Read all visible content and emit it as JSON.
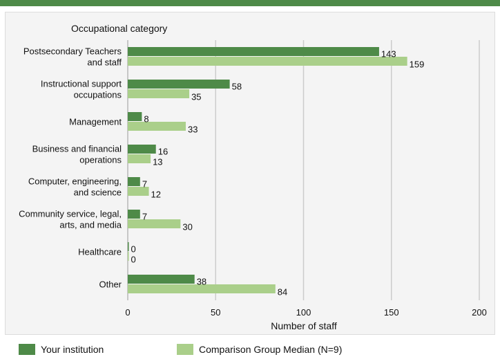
{
  "colors": {
    "accent": "#4e8a48",
    "series_1": "#4e8a48",
    "series_2": "#aacf8a",
    "gridline": "#cccccc"
  },
  "chart_data": {
    "type": "bar",
    "orientation": "horizontal",
    "title": "",
    "ylabel": "Occupational category",
    "xlabel": "Number of staff",
    "categories": [
      [
        "Postsecondary Teachers",
        "and staff"
      ],
      [
        "Instructional support",
        "occupations"
      ],
      [
        "Management"
      ],
      [
        "Business and financial",
        "operations"
      ],
      [
        "Computer, engineering,",
        "and science"
      ],
      [
        "Community service, legal,",
        "arts, and media"
      ],
      [
        "Healthcare"
      ],
      [
        "Other"
      ]
    ],
    "series": [
      {
        "name": "Your institution",
        "values": [
          143,
          58,
          8,
          16,
          7,
          7,
          0,
          38
        ]
      },
      {
        "name": "Comparison Group Median (N=9)",
        "values": [
          159,
          35,
          33,
          13,
          12,
          30,
          0,
          84
        ]
      }
    ],
    "xlim": [
      0,
      200
    ],
    "xticks": [
      0,
      50,
      100,
      150,
      200
    ],
    "grid": true,
    "legend_position": "bottom"
  }
}
